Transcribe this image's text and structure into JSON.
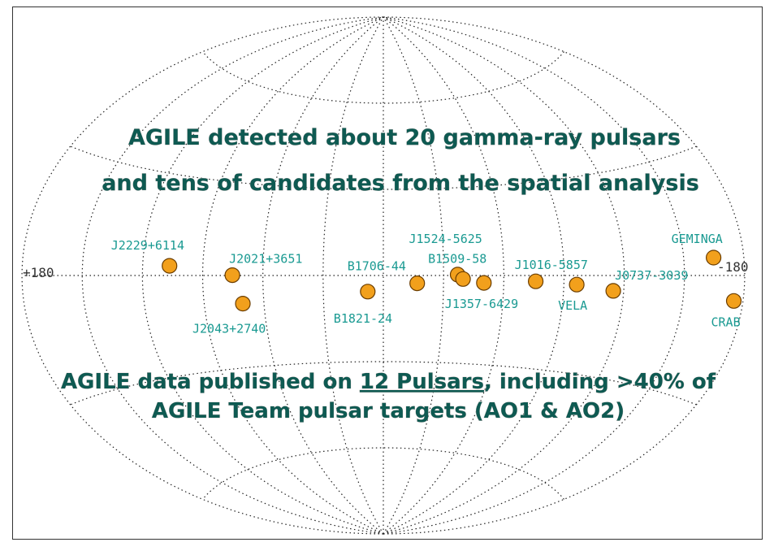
{
  "map": {
    "projection": "aitoff",
    "lon_range": [
      180,
      -180
    ],
    "lon_left_label": "+180",
    "lon_right_label": "-180",
    "meridian_step_deg": 30,
    "parallel_step_deg": 30,
    "grid": "dotted",
    "marker_color": "#f2a01c",
    "marker_edge": "#6b3d00",
    "label_color": "#1a9a92",
    "text_color": "#0e5a52"
  },
  "headline": {
    "line1": "AGILE detected about 20 gamma-ray pulsars",
    "line2": "and tens of candidates from the spatial analysis"
  },
  "footer": {
    "line1_before": "AGILE data published on ",
    "line1_underlined": "12 Pulsars",
    "line1_after": ", including >40% of",
    "line2": "AGILE Team pulsar targets (AO1 & AO2)"
  },
  "pulsars": [
    {
      "name": "J2229+6114",
      "lon": 106.6,
      "lat": 2.9
    },
    {
      "name": "J2021+3651",
      "lon": 75.2,
      "lat": 0.1
    },
    {
      "name": "J2043+2740",
      "lon": 70.6,
      "lat": -9.2
    },
    {
      "name": "B1821-24",
      "lon": 7.8,
      "lat": -5.6
    },
    {
      "name": "B1706-44",
      "lon": 343.1,
      "lat": -2.7
    },
    {
      "name": "J1524-5625",
      "lon": 323.0,
      "lat": 0.3
    },
    {
      "name": "B1509-58",
      "lon": 320.3,
      "lat": -1.2
    },
    {
      "name": "J1357-6429",
      "lon": 309.9,
      "lat": -2.5
    },
    {
      "name": "J1016-5857",
      "lon": 284.1,
      "lat": -1.9
    },
    {
      "name": "VELA",
      "lon": 263.6,
      "lat": -2.8
    },
    {
      "name": "J0737-3039",
      "lon": 245.2,
      "lat": -4.5
    },
    {
      "name": "GEMINGA",
      "lon": 195.1,
      "lat": 4.3
    },
    {
      "name": "CRAB",
      "lon": 184.6,
      "lat": -5.8
    }
  ]
}
